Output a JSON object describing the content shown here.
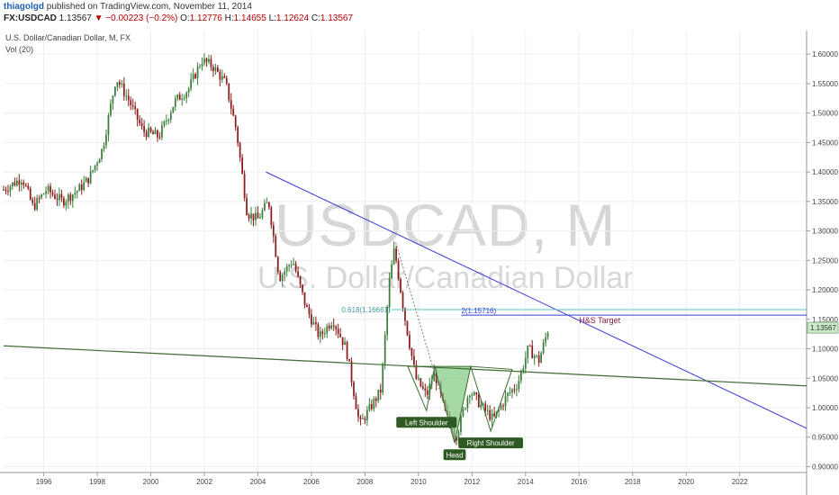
{
  "header": {
    "author": "thiagolgd",
    "published_text": "published on TradingView.com, November 11, 2014",
    "symbol": "FX:USDCAD",
    "last": "1.13567",
    "change": "−0.00223 (−0.2%)",
    "open_label": "O:",
    "open": "1.12776",
    "high_label": "H:",
    "high": "1.14655",
    "low_label": "L:",
    "low": "1.12624",
    "close_label": "C:",
    "close": "1.13567",
    "series_title": "U.S. Dollar/Canadian Dollar, M, FX",
    "volume_label": "Vol (20)"
  },
  "watermark": {
    "symbol": "USDCAD, M",
    "name": "U.S. Dollar/Canadian Dollar"
  },
  "colors": {
    "up": "#3a7d3a",
    "down": "#8b1a1a",
    "trend": "#3a3ad6",
    "neckline": "#3d6b33",
    "fib": "#5bc0c0",
    "target": "#8b1a3a",
    "pattern_fill": "#7fc97f"
  },
  "chart_data": {
    "type": "candlestick",
    "x_unit": "year",
    "xlim": [
      1994.5,
      2024.5
    ],
    "ylim": [
      0.89,
      1.64
    ],
    "x_ticks": [
      "1996",
      "1998",
      "2000",
      "2002",
      "2004",
      "2006",
      "2008",
      "2010",
      "2012",
      "2014",
      "2016",
      "2018",
      "2020",
      "2022"
    ],
    "y_ticks": [
      "0.90000",
      "0.95000",
      "1.00000",
      "1.05000",
      "1.10000",
      "1.15000",
      "1.20000",
      "1.25000",
      "1.30000",
      "1.35000",
      "1.40000",
      "1.45000",
      "1.50000",
      "1.55000",
      "1.60000"
    ],
    "last_price": "1.13567",
    "price_path": [
      [
        1994.5,
        1.37
      ],
      [
        1995.2,
        1.39
      ],
      [
        1995.6,
        1.34
      ],
      [
        1996.1,
        1.37
      ],
      [
        1996.7,
        1.35
      ],
      [
        1997.3,
        1.37
      ],
      [
        1997.7,
        1.39
      ],
      [
        1998.2,
        1.44
      ],
      [
        1998.7,
        1.56
      ],
      [
        1999.2,
        1.52
      ],
      [
        1999.7,
        1.47
      ],
      [
        2000.3,
        1.46
      ],
      [
        2000.9,
        1.52
      ],
      [
        2001.4,
        1.54
      ],
      [
        2001.9,
        1.59
      ],
      [
        2002.3,
        1.58
      ],
      [
        2002.8,
        1.55
      ],
      [
        2003.2,
        1.47
      ],
      [
        2003.6,
        1.33
      ],
      [
        2004.0,
        1.32
      ],
      [
        2004.4,
        1.35
      ],
      [
        2004.8,
        1.22
      ],
      [
        2005.3,
        1.25
      ],
      [
        2005.8,
        1.17
      ],
      [
        2006.3,
        1.12
      ],
      [
        2006.8,
        1.15
      ],
      [
        2007.3,
        1.1
      ],
      [
        2007.8,
        0.97
      ],
      [
        2008.2,
        1.0
      ],
      [
        2008.6,
        1.03
      ],
      [
        2008.9,
        1.21
      ],
      [
        2009.1,
        1.27
      ],
      [
        2009.5,
        1.15
      ],
      [
        2009.9,
        1.05
      ],
      [
        2010.3,
        1.02
      ],
      [
        2010.6,
        1.06
      ],
      [
        2011.0,
        0.99
      ],
      [
        2011.4,
        0.95
      ],
      [
        2011.9,
        1.03
      ],
      [
        2012.4,
        1.0
      ],
      [
        2012.8,
        0.98
      ],
      [
        2013.3,
        1.02
      ],
      [
        2013.7,
        1.04
      ],
      [
        2014.1,
        1.1
      ],
      [
        2014.5,
        1.08
      ],
      [
        2014.86,
        1.1357
      ]
    ],
    "lines": [
      {
        "name": "descending-trendline",
        "from": [
          2004.3,
          1.4
        ],
        "to": [
          2024.5,
          0.965
        ]
      },
      {
        "name": "neckline",
        "from": [
          1994.5,
          1.105
        ],
        "to": [
          2024.5,
          1.037
        ]
      },
      {
        "name": "fib-618-line",
        "from": [
          2009.0,
          1.1665
        ],
        "to": [
          2024.5,
          1.1665
        ]
      },
      {
        "name": "hs-target-line",
        "from": [
          2011.6,
          1.1572
        ],
        "to": [
          2024.5,
          1.1572
        ]
      },
      {
        "name": "decline-projection",
        "from": [
          2009.15,
          1.28
        ],
        "to": [
          2011.35,
          0.945
        ]
      }
    ],
    "pattern": {
      "left_shoulder": [
        [
          2009.6,
          1.07
        ],
        [
          2010.3,
          0.995
        ],
        [
          2010.6,
          1.07
        ]
      ],
      "head": [
        [
          2010.6,
          1.07
        ],
        [
          2011.35,
          0.94
        ],
        [
          2011.95,
          1.07
        ]
      ],
      "right_shoulder": [
        [
          2011.95,
          1.07
        ],
        [
          2012.7,
          0.96
        ],
        [
          2013.5,
          1.065
        ]
      ]
    },
    "annotations": [
      {
        "label": "Left Shoulder",
        "x": 2010.3,
        "y": 0.995
      },
      {
        "label": "Head",
        "x": 2011.35,
        "y": 0.94
      },
      {
        "label": "Right Shoulder",
        "x": 2012.7,
        "y": 0.96
      }
    ],
    "fib_label": "0.618(1.16661)",
    "target_level_label": "2(1.15716)",
    "target_text": "H&S Target"
  }
}
